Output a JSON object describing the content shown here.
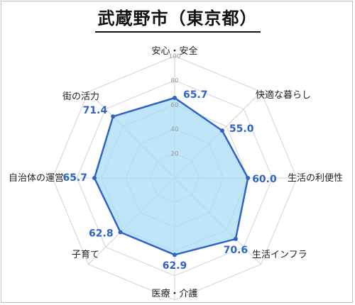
{
  "title": "武蔵野市（東京都）",
  "chart_data": {
    "type": "radar",
    "categories": [
      "安心・安全",
      "快適な暮らし",
      "生活の利便性",
      "生活インフラ",
      "医療・介護",
      "子育て",
      "自治体の運営",
      "街の活力"
    ],
    "series": [
      {
        "values": [
          65.7,
          55.0,
          60.0,
          70.6,
          62.9,
          62.8,
          65.7,
          71.4
        ]
      }
    ],
    "value_labels": [
      "65.7",
      "55.0",
      "60.0",
      "70.6",
      "62.9",
      "62.8",
      "65.7",
      "71.4"
    ],
    "ticks": [
      20,
      40,
      60,
      80,
      100
    ],
    "tick_labels": [
      "20",
      "40",
      "60",
      "80",
      "100"
    ],
    "rlim": [
      0,
      100
    ],
    "line_color": "#2f63c6",
    "fill_color": "#a8dcf5",
    "grid": true
  }
}
